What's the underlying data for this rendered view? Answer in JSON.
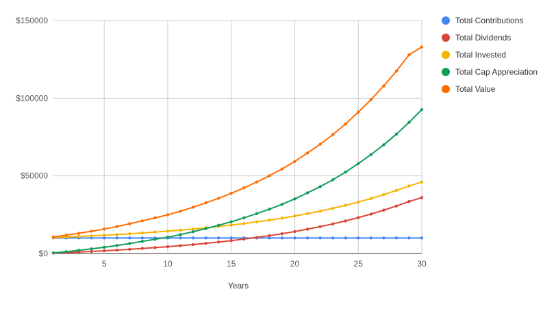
{
  "chart_data": {
    "type": "line",
    "title": "",
    "xlabel": "Years",
    "ylabel": "",
    "xlim": [
      1,
      30
    ],
    "ylim": [
      0,
      150000
    ],
    "x_ticks": [
      5,
      10,
      15,
      20,
      25,
      30
    ],
    "x_tick_labels": [
      "5",
      "10",
      "15",
      "20",
      "25",
      "30"
    ],
    "y_ticks": [
      0,
      50000,
      100000,
      150000
    ],
    "y_tick_labels": [
      "$0",
      "$50000",
      "$100000",
      "$150000"
    ],
    "grid": true,
    "legend_position": "right",
    "x": [
      1,
      2,
      3,
      4,
      5,
      6,
      7,
      8,
      9,
      10,
      11,
      12,
      13,
      14,
      15,
      16,
      17,
      18,
      19,
      20,
      21,
      22,
      23,
      24,
      25,
      26,
      27,
      28,
      29,
      30
    ],
    "series": [
      {
        "name": "Total Contributions",
        "color": "#4285f4",
        "values": [
          10000,
          10000,
          10000,
          10000,
          10000,
          10000,
          10000,
          10000,
          10000,
          10000,
          10000,
          10000,
          10000,
          10000,
          10000,
          10000,
          10000,
          10000,
          10000,
          10000,
          10000,
          10000,
          10000,
          10000,
          10000,
          10000,
          10000,
          10000,
          10000,
          10000
        ]
      },
      {
        "name": "Total Dividends",
        "color": "#db4437",
        "values": [
          300,
          600,
          950,
          1350,
          1750,
          2200,
          2700,
          3250,
          3800,
          4400,
          5050,
          5750,
          6550,
          7400,
          8300,
          9300,
          10350,
          11500,
          12750,
          14150,
          15650,
          17300,
          19050,
          21000,
          23100,
          25400,
          27900,
          30600,
          33500,
          36000
        ]
      },
      {
        "name": "Total Invested",
        "color": "#f4b400",
        "values": [
          10300,
          10600,
          10950,
          11350,
          11750,
          12200,
          12700,
          13250,
          13800,
          14400,
          15050,
          15750,
          16550,
          17400,
          18300,
          19300,
          20350,
          21500,
          22750,
          24150,
          25650,
          27300,
          29050,
          31000,
          33100,
          35400,
          37900,
          40600,
          43500,
          46000
        ]
      },
      {
        "name": "Total Cap Appreciation",
        "color": "#0f9d58",
        "values": [
          400,
          1150,
          2050,
          3000,
          4000,
          5150,
          6450,
          7800,
          9150,
          10500,
          12150,
          14050,
          16050,
          18150,
          20450,
          22950,
          25650,
          28550,
          31700,
          35150,
          39050,
          43050,
          47500,
          52450,
          57900,
          63700,
          69950,
          76850,
          84450,
          92650
        ]
      },
      {
        "name": "Total Value",
        "color": "#ff6d00",
        "values": [
          10700,
          11750,
          13000,
          14350,
          15750,
          17350,
          19150,
          21050,
          22950,
          24900,
          27200,
          29800,
          32600,
          35550,
          38750,
          42250,
          46000,
          50050,
          54450,
          59300,
          64700,
          70350,
          76550,
          83450,
          91000,
          99100,
          107850,
          117450,
          127950,
          133000
        ]
      }
    ]
  }
}
